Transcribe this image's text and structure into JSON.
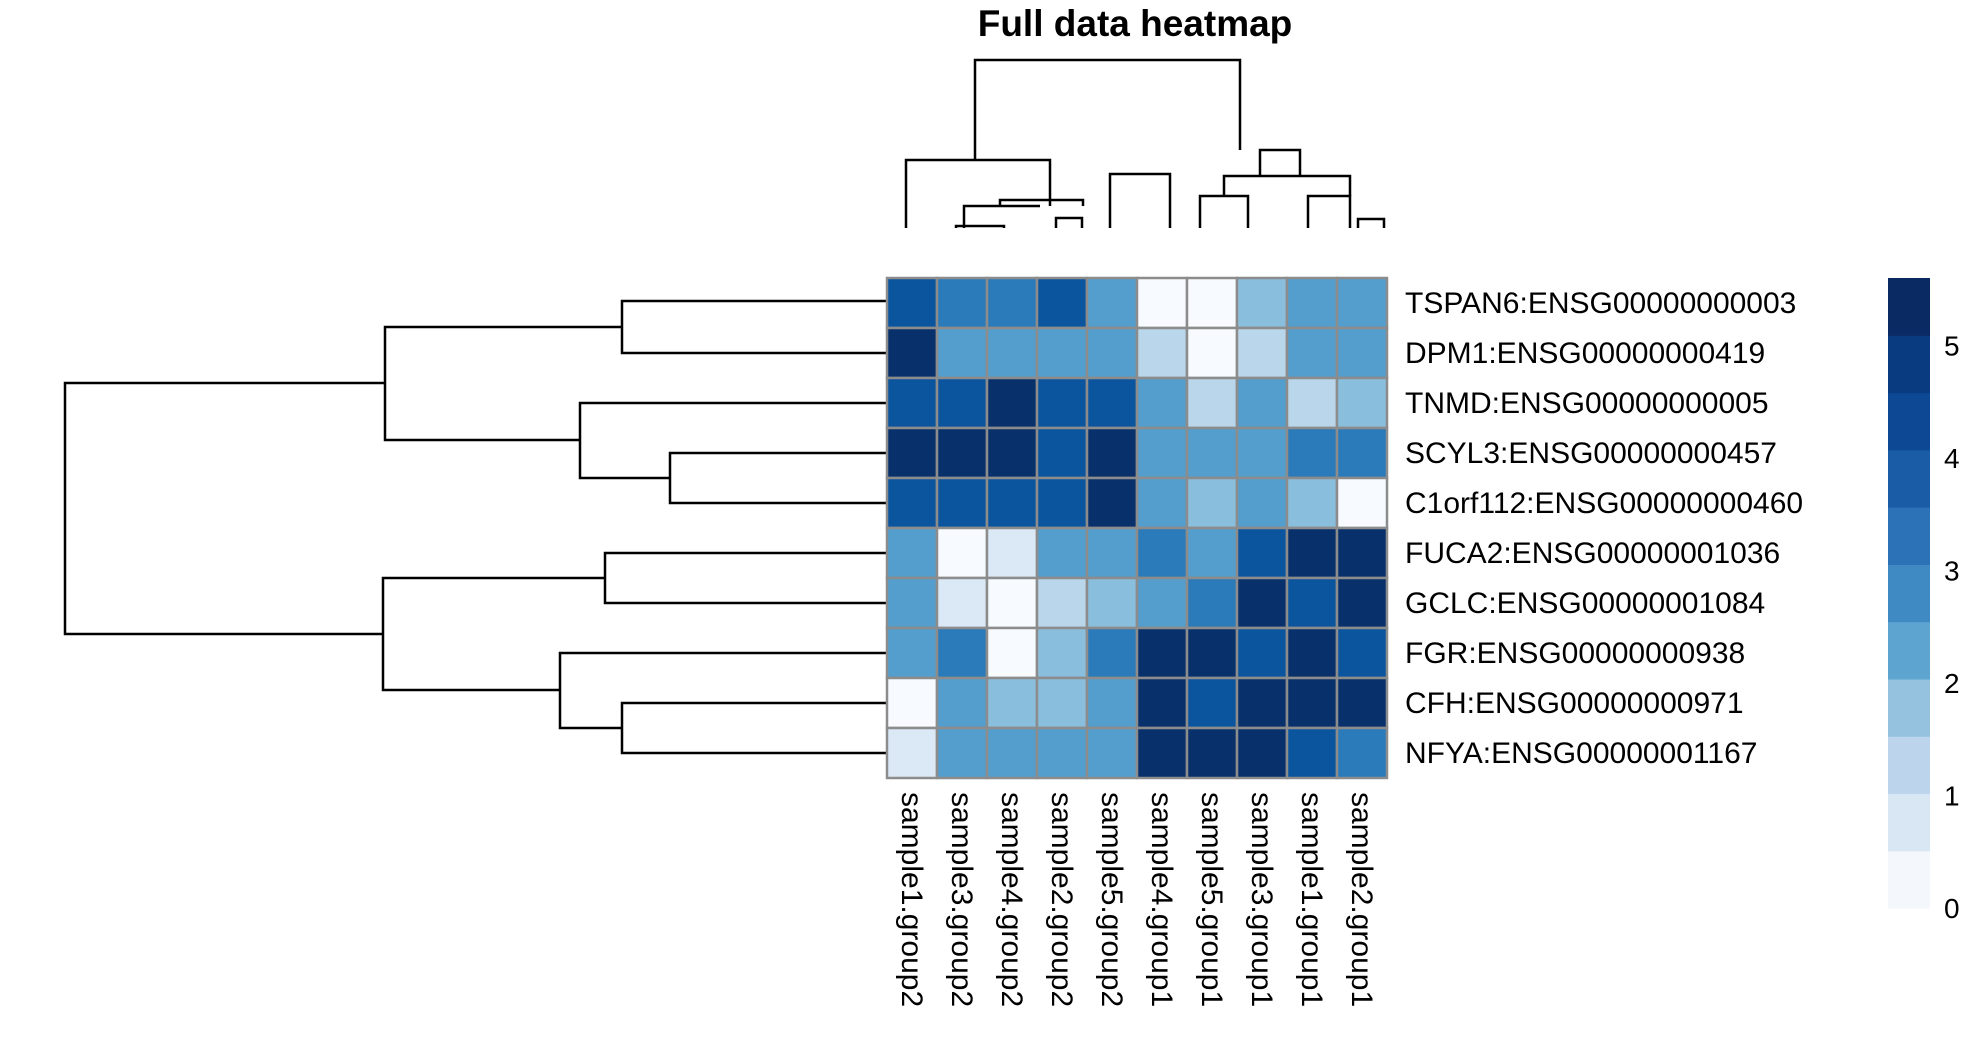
{
  "chart_data": {
    "type": "heatmap",
    "title": "Full data heatmap",
    "columns": [
      "sample1.group2",
      "sample3.group2",
      "sample4.group2",
      "sample2.group2",
      "sample5.group2",
      "sample4.group1",
      "sample5.group1",
      "sample3.group1",
      "sample1.group1",
      "sample2.group1"
    ],
    "rows": [
      "TSPAN6:ENSG00000000003",
      "DPM1:ENSG00000000419",
      "TNMD:ENSG00000000005",
      "SCYL3:ENSG00000000457",
      "C1orf112:ENSG00000000460",
      "FUCA2:ENSG00000001036",
      "GCLC:ENSG00000001084",
      "FGR:ENSG00000000938",
      "CFH:ENSG00000000971",
      "NFYA:ENSG00000001167"
    ],
    "values": [
      [
        4.8,
        3.5,
        3.5,
        4.2,
        3.3,
        0.2,
        0.0,
        2.2,
        2.8,
        2.8
      ],
      [
        5.5,
        2.8,
        3.3,
        2.8,
        3.3,
        1.5,
        0.0,
        1.5,
        2.8,
        3.3
      ],
      [
        4.2,
        4.8,
        5.5,
        4.8,
        4.2,
        2.8,
        1.5,
        3.3,
        1.5,
        2.2
      ],
      [
        5.5,
        5.5,
        5.5,
        4.8,
        5.5,
        2.8,
        2.8,
        2.8,
        3.5,
        3.5
      ],
      [
        4.2,
        4.8,
        4.2,
        4.8,
        5.5,
        2.8,
        2.2,
        3.3,
        2.2,
        0.0
      ],
      [
        2.8,
        0.0,
        1.0,
        2.8,
        2.8,
        3.5,
        2.8,
        4.2,
        5.5,
        5.5
      ],
      [
        3.3,
        1.0,
        0.0,
        1.5,
        2.2,
        2.8,
        3.5,
        5.5,
        4.2,
        5.5
      ],
      [
        3.3,
        3.5,
        0.0,
        2.2,
        3.5,
        5.5,
        5.5,
        4.2,
        5.5,
        4.2
      ],
      [
        0.0,
        2.8,
        2.2,
        2.2,
        2.8,
        5.5,
        4.8,
        5.5,
        5.5,
        5.5
      ],
      [
        1.0,
        2.8,
        2.8,
        2.8,
        2.8,
        5.5,
        5.5,
        5.5,
        4.8,
        3.5
      ]
    ],
    "color_scale": {
      "breaks": [
        0,
        0.5,
        1,
        1.5,
        2,
        2.5,
        3,
        3.5,
        4,
        4.5,
        5,
        5.6
      ],
      "colors": [
        "#f7fbff",
        "#deebf7",
        "#c6dbef",
        "#9ecae1",
        "#6baed6",
        "#4292c6",
        "#2171b5",
        "#08519c",
        "#08306b",
        "#08306b",
        "#08306b"
      ],
      "palette": [
        "#f7fbff",
        "#dbe9f6",
        "#bad6eb",
        "#89bedc",
        "#539ecd",
        "#2b7bba",
        "#0b559f",
        "#08306b"
      ],
      "vmin": 0,
      "vmax": 5.6
    },
    "legend": {
      "position": "right",
      "ticks": [
        "0",
        "1",
        "2",
        "3",
        "4",
        "5"
      ]
    },
    "grid_color": "#8c8c8c"
  }
}
